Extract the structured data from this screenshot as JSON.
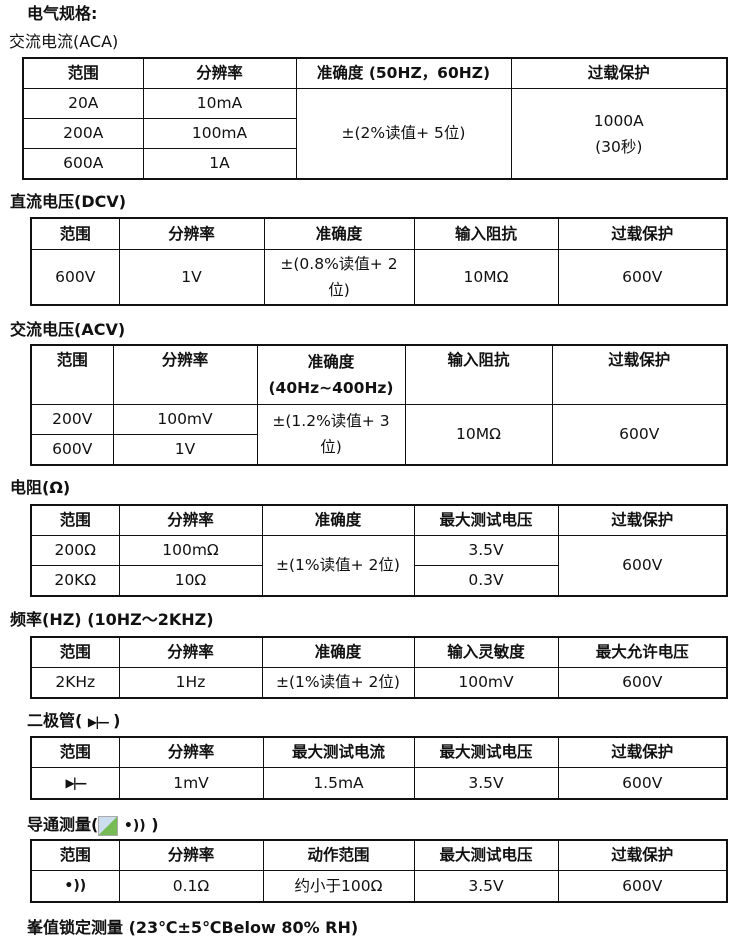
{
  "title": "电气规格:",
  "aca": {
    "title": "交流电流(ACA)",
    "headers": [
      "范围",
      "分辨率",
      "准确度 (50HZ，60HZ)",
      "过载保护"
    ],
    "rows": [
      [
        "20A",
        "10mA"
      ],
      [
        "200A",
        "100mA"
      ],
      [
        "600A",
        "1A"
      ]
    ],
    "accuracy": "±(2%读值+ 5位)",
    "protect1": "1000A",
    "protect2": "(30秒)"
  },
  "dcv": {
    "title": "直流电压(DCV)",
    "headers": [
      "范围",
      "分辨率",
      "准确度",
      "输入阻抗",
      "过载保护"
    ],
    "row": [
      "600V",
      "1V",
      "±(0.8%读值+ 2位)",
      "10MΩ",
      "600V"
    ]
  },
  "acv": {
    "title": "交流电压(ACV)",
    "headers": [
      "范围",
      "分辨率",
      "准确度",
      "输入阻抗",
      "过载保护"
    ],
    "accuracy_freq": "(40Hz~400Hz)",
    "rows": [
      [
        "200V",
        "100mV"
      ],
      [
        "600V",
        "1V"
      ]
    ],
    "accuracy": "±(1.2%读值+ 3位)",
    "impedance": "10MΩ",
    "protect": "600V"
  },
  "res": {
    "title": "电阻(Ω)",
    "headers": [
      "范围",
      "分辨率",
      "准确度",
      "最大测试电压",
      "过载保护"
    ],
    "rows": [
      [
        "200Ω",
        "100mΩ",
        "3.5V"
      ],
      [
        "20KΩ",
        "10Ω",
        "0.3V"
      ]
    ],
    "accuracy": "±(1%读值+ 2位)",
    "protect": "600V"
  },
  "freq": {
    "title": "频率(HZ) (10HZ～2KHZ)",
    "headers": [
      "范围",
      "分辨率",
      "准确度",
      "输入灵敏度",
      "最大允许电压"
    ],
    "row": [
      "2KHz",
      "1Hz",
      "±(1%读值+ 2位)",
      "100mV",
      "600V"
    ]
  },
  "diode": {
    "title_pre": "二极管(",
    "title_post": ")",
    "icon": "diode-icon",
    "headers": [
      "范围",
      "分辨率",
      "最大测试电流",
      "最大测试电压",
      "过载保护"
    ],
    "row": [
      "1mV",
      "1.5mA",
      "3.5V",
      "600V"
    ]
  },
  "cont": {
    "title_pre": "导通测量(",
    "title_post": " )",
    "icon": "continuity-sound-icon",
    "headers": [
      "范围",
      "分辨率",
      "动作范围",
      "最大测试电压",
      "过载保护"
    ],
    "row": [
      "0.1Ω",
      "约小于100Ω",
      "3.5V",
      "600V"
    ]
  },
  "peak": {
    "title": "峯值锁定测量 (23℃±5℃Below 80% RH)"
  }
}
